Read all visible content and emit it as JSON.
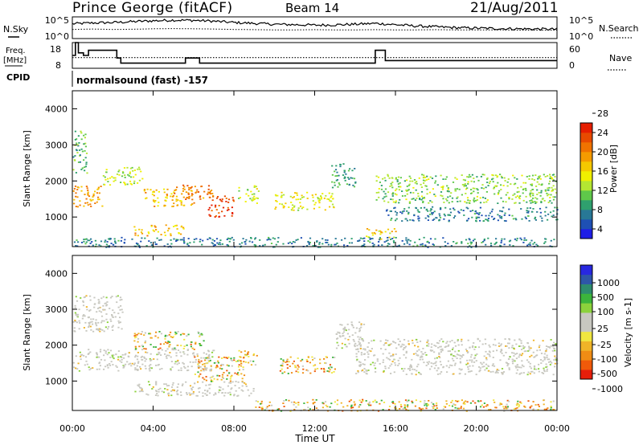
{
  "header": {
    "station": "Prince George (fitACF)",
    "beam": "Beam 14",
    "date": "21/Aug/2011"
  },
  "top_panels": {
    "nsky_label": "N.Sky",
    "nsky_tick_hi": "10^5",
    "nsky_tick_lo": "10^0",
    "nsearch_label": "N.Search",
    "nsearch_tick_hi": "10^5",
    "nsearch_tick_lo": "10^0",
    "freq_label_1": "Freq.",
    "freq_label_2": "[MHz]",
    "freq_ticks": [
      "18",
      "8"
    ],
    "nave_label": "Nave",
    "nave_ticks": [
      "60",
      "0"
    ],
    "cpid_label": "CPID",
    "cpid_value": "normalsound (fast) -157"
  },
  "time_axis": {
    "label": "Time UT",
    "ticks": [
      "00:00",
      "04:00",
      "08:00",
      "12:00",
      "16:00",
      "20:00",
      "00:00"
    ]
  },
  "range_axis": {
    "label": "Slant Range [km]",
    "ticks": [
      "1000",
      "2000",
      "3000",
      "4000"
    ]
  },
  "power_colorbar": {
    "label": "Power [dB]",
    "ticks": [
      "4",
      "8",
      "12",
      "16",
      "20",
      "24",
      "28"
    ],
    "colors": [
      "#1e1ee6",
      "#1e50b4",
      "#287896",
      "#2fa06e",
      "#5fc84a",
      "#b4e632",
      "#f0f000",
      "#f5c800",
      "#f59b00",
      "#f07300",
      "#e84a00",
      "#e61e00"
    ]
  },
  "velocity_colorbar": {
    "label": "Velocity [m s-1]",
    "ticks": [
      "1000",
      "500",
      "100",
      "25",
      "-25",
      "-100",
      "-500",
      "-1000"
    ],
    "colors": [
      "#2828e0",
      "#2e56a8",
      "#2e8c6e",
      "#3cb43c",
      "#8cd23c",
      "#c8c8c0",
      "#c8c8c0",
      "#f0e640",
      "#f0b428",
      "#f08c14",
      "#f05a0a",
      "#e61e0a"
    ]
  },
  "chart_data": [
    {
      "type": "line",
      "title": "Prince George (fitACF) Beam 14 21/Aug/2011",
      "panel": "N.Sky / N.Search",
      "x_units": "hours UT",
      "x": [
        0,
        1,
        2,
        3,
        4,
        5,
        6,
        7,
        8,
        9,
        10,
        11,
        12,
        13,
        14,
        15,
        16,
        17,
        18,
        19,
        20,
        21,
        22,
        23,
        24
      ],
      "series": [
        {
          "name": "N.Sky",
          "values": [
            0.68,
            0.72,
            0.74,
            0.78,
            0.82,
            0.85,
            0.84,
            0.8,
            0.74,
            0.7,
            0.66,
            0.64,
            0.62,
            0.63,
            0.66,
            0.7,
            0.64,
            0.58,
            0.54,
            0.5,
            0.48,
            0.46,
            0.45,
            0.44,
            0.43
          ]
        },
        {
          "name": "N.Search",
          "values": [
            0.42,
            0.44,
            0.42,
            0.43,
            0.45,
            0.46,
            0.45,
            0.44,
            0.42,
            0.41,
            0.4,
            0.4,
            0.41,
            0.4,
            0.4,
            0.41,
            0.4,
            0.4,
            0.41,
            0.4,
            0.4,
            0.4,
            0.39,
            0.39,
            0.39
          ]
        }
      ]
    },
    {
      "type": "line",
      "panel": "Freq. / Nave",
      "x_units": "hours UT",
      "series": [
        {
          "name": "Freq.",
          "ylim": [
            8,
            18
          ],
          "x": [
            0,
            0.15,
            0.3,
            0.55,
            0.8,
            1.3,
            1.8,
            2.2,
            2.4,
            4.7,
            5.6,
            6.3,
            14.5,
            15,
            15.5,
            24
          ],
          "values": [
            13,
            18,
            14,
            13,
            15,
            15,
            15,
            12,
            10,
            10,
            12,
            10,
            10,
            15,
            11,
            11
          ]
        },
        {
          "name": "Nave",
          "ylim": [
            0,
            60
          ],
          "x": [
            0,
            24
          ],
          "values": [
            25,
            25
          ]
        }
      ]
    },
    {
      "type": "heatmap",
      "panel": "Power",
      "xlabel": "Time UT",
      "ylabel": "Slant Range [km]",
      "xlim": [
        0,
        24
      ],
      "ylim": [
        180,
        4500
      ],
      "zlabel": "Power [dB]",
      "zlim": [
        0,
        30
      ],
      "regions": [
        {
          "t": [
            0,
            1.5
          ],
          "r": [
            1300,
            1900
          ],
          "dB": 22
        },
        {
          "t": [
            0,
            0.7
          ],
          "r": [
            2200,
            3400
          ],
          "dB": 10
        },
        {
          "t": [
            1.5,
            3.5
          ],
          "r": [
            1900,
            2400
          ],
          "dB": 14
        },
        {
          "t": [
            3.5,
            6
          ],
          "r": [
            1300,
            1800
          ],
          "dB": 20
        },
        {
          "t": [
            5,
            7
          ],
          "r": [
            1500,
            1900
          ],
          "dB": 24
        },
        {
          "t": [
            6.7,
            8
          ],
          "r": [
            1000,
            1600
          ],
          "dB": 28
        },
        {
          "t": [
            3,
            5.5
          ],
          "r": [
            500,
            800
          ],
          "dB": 20
        },
        {
          "t": [
            8.2,
            9.2
          ],
          "r": [
            1400,
            1900
          ],
          "dB": 14
        },
        {
          "t": [
            10,
            13
          ],
          "r": [
            1200,
            1700
          ],
          "dB": 16
        },
        {
          "t": [
            12.8,
            14
          ],
          "r": [
            1800,
            2500
          ],
          "dB": 8
        },
        {
          "t": [
            14.5,
            16
          ],
          "r": [
            400,
            700
          ],
          "dB": 18
        },
        {
          "t": [
            15,
            24
          ],
          "r": [
            1400,
            2200
          ],
          "dB": 12
        },
        {
          "t": [
            15.5,
            24
          ],
          "r": [
            900,
            1300
          ],
          "dB": 6
        },
        {
          "t": [
            0,
            24
          ],
          "r": [
            180,
            450
          ],
          "dB": 6
        }
      ]
    },
    {
      "type": "heatmap",
      "panel": "Velocity",
      "xlabel": "Time UT",
      "ylabel": "Slant Range [km]",
      "xlim": [
        0,
        24
      ],
      "ylim": [
        180,
        4500
      ],
      "zlabel": "Velocity [m s-1]",
      "zlim": [
        -1000,
        1000
      ],
      "regions": [
        {
          "t": [
            0,
            2.5
          ],
          "r": [
            2400,
            3400
          ],
          "ms": 0
        },
        {
          "t": [
            0,
            7
          ],
          "r": [
            1300,
            1900
          ],
          "ms": 0
        },
        {
          "t": [
            3,
            6.5
          ],
          "r": [
            1900,
            2400
          ],
          "ms": -150
        },
        {
          "t": [
            6,
            8.5
          ],
          "r": [
            1000,
            1700
          ],
          "ms": -300
        },
        {
          "t": [
            8.2,
            9.2
          ],
          "r": [
            1400,
            1900
          ],
          "ms": -200
        },
        {
          "t": [
            10.2,
            13
          ],
          "r": [
            1200,
            1700
          ],
          "ms": -300
        },
        {
          "t": [
            13,
            14.5
          ],
          "r": [
            1900,
            2700
          ],
          "ms": 0
        },
        {
          "t": [
            14,
            24
          ],
          "r": [
            1200,
            2200
          ],
          "ms": 0
        },
        {
          "t": [
            3,
            9
          ],
          "r": [
            600,
            1000
          ],
          "ms": 0
        },
        {
          "t": [
            9,
            24
          ],
          "r": [
            180,
            500
          ],
          "ms": -80
        }
      ]
    }
  ]
}
